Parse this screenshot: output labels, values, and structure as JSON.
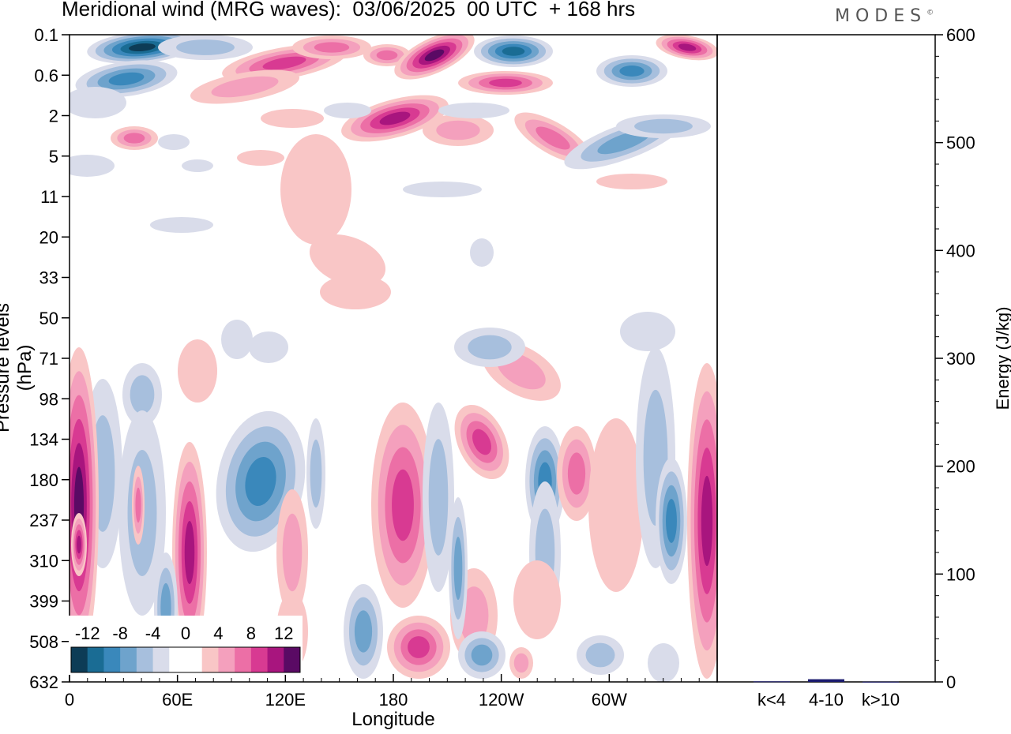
{
  "title": "Meridional wind (MRG waves):  03/06/2025  00 UTC  + 168 hrs",
  "logo": "MODES",
  "logo_mark": "©",
  "ylabel_left": "Pressure levels (hPa)",
  "ylabel_right": "Energy (J/kg)",
  "xlabel": "Longitude",
  "colors": {
    "scale": [
      "#0d3c56",
      "#1a6c94",
      "#3a88bb",
      "#6ea3cc",
      "#a7bfdd",
      "#d9dcea",
      "#ffffff",
      "#ffffff",
      "#f9c6c6",
      "#f4a0bd",
      "#ec6fa6",
      "#d83a92",
      "#a8157e",
      "#5a0a64"
    ],
    "energy_bar": "#1a1a6e"
  },
  "chart_data": [
    {
      "type": "heatmap",
      "title": "Meridional wind (MRG waves):  03/06/2025  00 UTC  + 168 hrs",
      "xlabel": "Longitude",
      "ylabel": "Pressure levels (hPa)",
      "x_ticks": [
        "0",
        "60E",
        "120E",
        "180",
        "120W",
        "60W"
      ],
      "x_tick_values": [
        0,
        60,
        120,
        180,
        240,
        300
      ],
      "xlim": [
        0,
        360
      ],
      "y_ticks": [
        "0.1",
        "0.6",
        "2",
        "5",
        "11",
        "20",
        "33",
        "50",
        "71",
        "98",
        "134",
        "180",
        "237",
        "310",
        "399",
        "508",
        "632"
      ],
      "colorbar_labels": [
        "-12",
        "-8",
        "-4",
        "0",
        "4",
        "8",
        "12"
      ],
      "colorbar_levels": [
        -14,
        -12,
        -10,
        -8,
        -6,
        -4,
        -2,
        0,
        2,
        4,
        6,
        8,
        10,
        12,
        14
      ],
      "legend_position": "bottom-left",
      "grid": false
    },
    {
      "type": "bar",
      "ylabel": "Energy (J/kg)",
      "categories": [
        "k<4",
        "4-10",
        "k>10"
      ],
      "values": [
        0.5,
        2.5,
        0.2
      ],
      "ylim": [
        0,
        600
      ],
      "y_ticks": [
        "0",
        "100",
        "200",
        "300",
        "400",
        "500",
        "600"
      ],
      "grid": false
    }
  ]
}
